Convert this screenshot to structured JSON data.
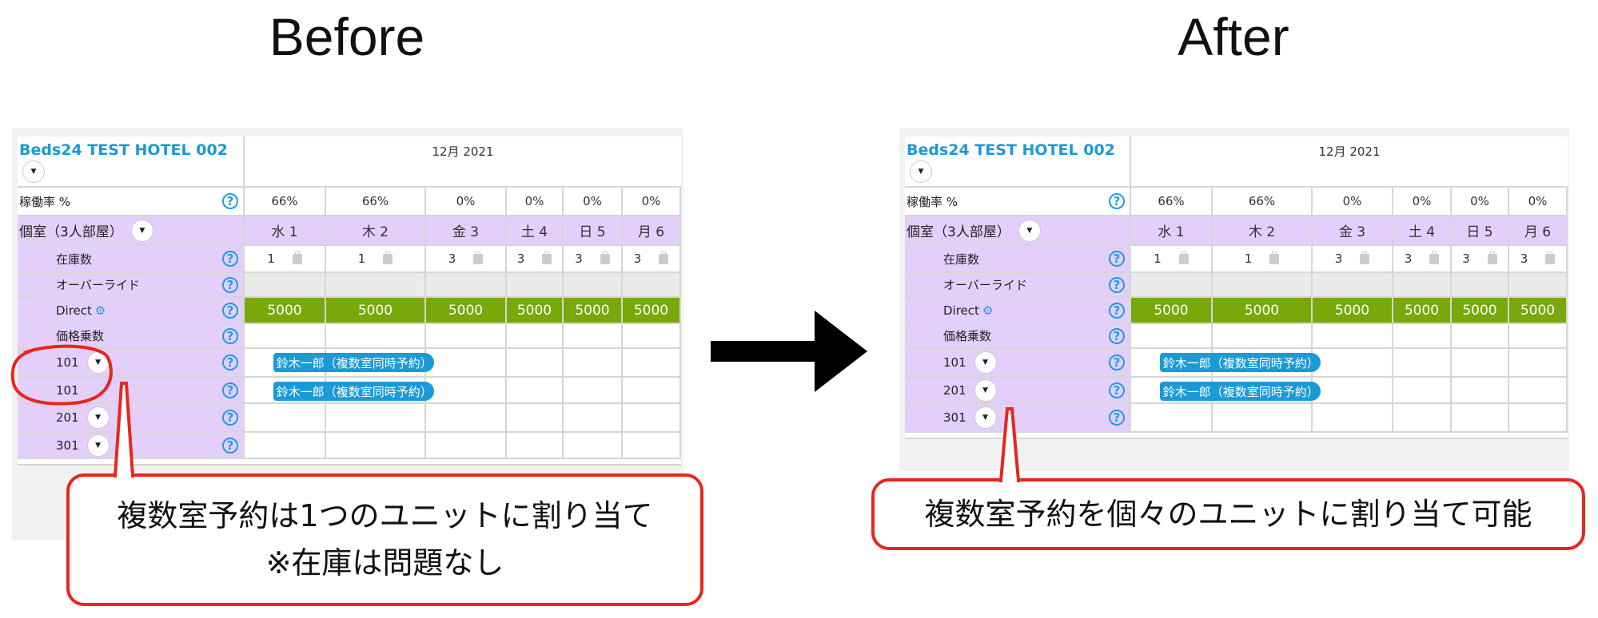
{
  "before": {
    "heading": "Before",
    "hotel_name": "Beds24 TEST HOTEL 002",
    "month": "12月 2021",
    "occupancy_label": "稼働率 %",
    "occupancy": [
      "66%",
      "66%",
      "0%",
      "0%",
      "0%",
      "0%"
    ],
    "room_type": "個室（3人部屋）",
    "days": [
      "水 1",
      "木 2",
      "金 3",
      "土 4",
      "日 5",
      "月 6"
    ],
    "stock_label": "在庫数",
    "stock": [
      "1",
      "1",
      "3",
      "3",
      "3",
      "3"
    ],
    "override_label": "オーバーライド",
    "direct_label": "Direct",
    "prices": [
      "5000",
      "5000",
      "5000",
      "5000",
      "5000",
      "5000"
    ],
    "multiplier_label": "価格乗数",
    "units": [
      {
        "name": "101",
        "dropdown": true,
        "booking": "鈴木一郎（複数室同時予約）"
      },
      {
        "name": "101",
        "dropdown": false,
        "booking": "鈴木一郎（複数室同時予約）"
      },
      {
        "name": "201",
        "dropdown": true,
        "booking": ""
      },
      {
        "name": "301",
        "dropdown": true,
        "booking": ""
      }
    ],
    "callout": [
      "複数室予約は1つのユニットに割り当て",
      "※在庫は問題なし"
    ]
  },
  "after": {
    "heading": "After",
    "hotel_name": "Beds24 TEST HOTEL 002",
    "month": "12月 2021",
    "occupancy_label": "稼働率 %",
    "occupancy": [
      "66%",
      "66%",
      "0%",
      "0%",
      "0%",
      "0%"
    ],
    "room_type": "個室（3人部屋）",
    "days": [
      "水 1",
      "木 2",
      "金 3",
      "土 4",
      "日 5",
      "月 6"
    ],
    "stock_label": "在庫数",
    "stock": [
      "1",
      "1",
      "3",
      "3",
      "3",
      "3"
    ],
    "override_label": "オーバーライド",
    "direct_label": "Direct",
    "prices": [
      "5000",
      "5000",
      "5000",
      "5000",
      "5000",
      "5000"
    ],
    "multiplier_label": "価格乗数",
    "units": [
      {
        "name": "101",
        "dropdown": true,
        "booking": "鈴木一郎（複数室同時予約）"
      },
      {
        "name": "201",
        "dropdown": true,
        "booking": "鈴木一郎（複数室同時予約）"
      },
      {
        "name": "301",
        "dropdown": true,
        "booking": ""
      }
    ],
    "callout": [
      "複数室予約を個々のユニットに割り当て可能"
    ]
  },
  "colors": {
    "accent": "#1a9ad6",
    "room_row": "#e3cffa",
    "price_cell": "#78a80a",
    "callout_border": "#e8261a"
  },
  "icons": {
    "help": "question-circle-icon",
    "dropdown": "chevron-down-icon",
    "inventory": "suitcase-icon",
    "direct": "gears-icon",
    "arrow": "arrow-right-icon"
  }
}
